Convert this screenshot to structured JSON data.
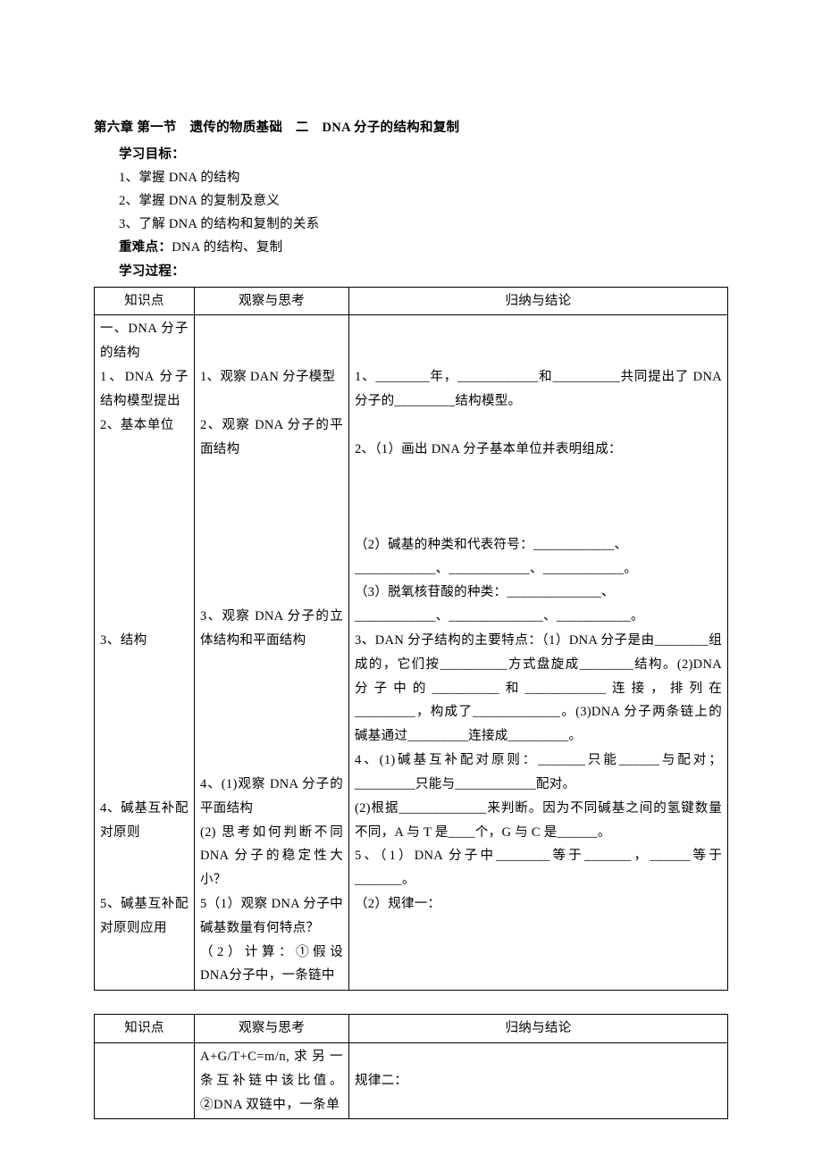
{
  "header": {
    "title": "第六章 第一节　遗传的物质基础　二　DNA 分子的结构和复制",
    "objectives_label": "学习目标：",
    "objectives": [
      "1、掌握 DNA 的结构",
      "2、掌握 DNA 的复制及意义",
      "3、了解 DNA 的结构和复制的关系"
    ],
    "keypoints_label": "重难点：",
    "keypoints_text": "DNA 的结构、复制",
    "process_label": "学习过程："
  },
  "table1": {
    "headers": [
      "知识点",
      "观察与思考",
      "归纳与结论"
    ],
    "col1_html": "一、DNA 分子的结构<br>1、DNA 分子结构模型提出<br>2、基本单位<br><br><br><br><br><br><br><br><br>3、结构<br><br><br><br><br><br><br>4、碱基互补配对原则<br><br><br>5、碱基互补配对原则应用",
    "col2_html": "<br><br>1、观察 DAN 分子模型<br><br>2、观察 DNA 分子的平面结构<br><br><br><br><br><br><br>3、观察 DNA 分子的立体结构和平面结构<br><br><br><br><br><br>4、(1)观察 DNA 分子的平面结构<br>(2) 思考如何判断不同DNA 分子的稳定性大小？<br>5（1）观察 DNA 分子中碱基数量有何特点？<br>（2）计算：①假设 DNA分子中，一条链中",
    "col3_html": "<br><br>1、________年，____________和__________共同提出了 DNA 分子的_________结构模型。<br><br>2、（1）画出 DNA 分子基本单位并表明组成：<br><br><br><br>（2）碱基的种类和代表符号：____________、<br>____________、____________、____________。<br>（3）脱氧核苷酸的种类：______________、<br>____________、______________、___________。<br>3、DAN 分子结构的主要特点：（1）DNA 分子是由________组成的，它们按__________方式盘旋成________结构。(2)DNA 分子中的__________和____________连接，排列在_________，构成了_____________。(3)DNA 分子两条链上的碱基通过_________连接成_________。<br>4、(1)碱基互补配对原则：_______只能______与配对；_________只能与____________配对。<br>(2)根据_____________来判断。因为不同碱基之间的氢键数量不同，A 与 T 是____个，G 与 C 是______。<br>5、（1）DNA 分子中________等于_______，______等于_______。<br>（2）规律一：<br><br><br><br>"
  },
  "table2": {
    "headers": [
      "知识点",
      "观察与思考",
      "归纳与结论"
    ],
    "col1_html": "",
    "col2_html": "A+G/T+C=m/n,求另一条互补链中该比值。②DNA 双链中，一条单",
    "col3_html": "<br>规律二："
  }
}
